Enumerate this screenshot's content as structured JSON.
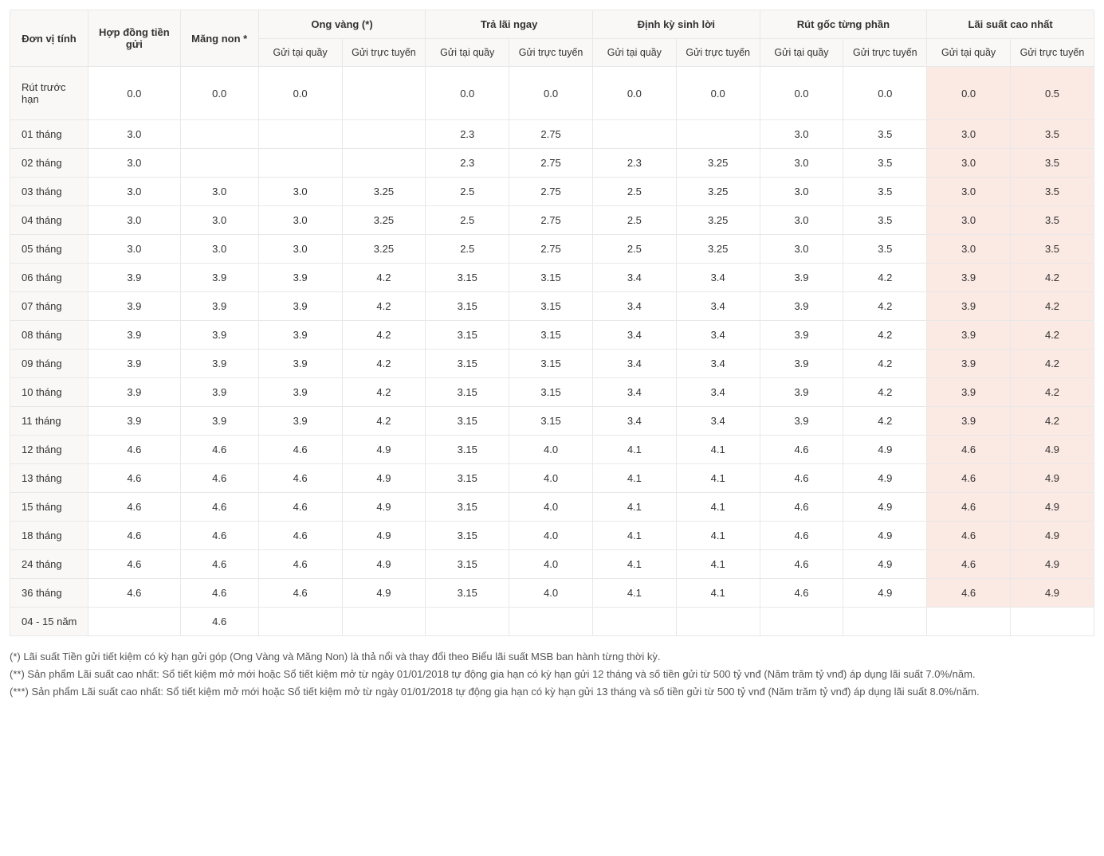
{
  "table": {
    "colors": {
      "header_bg": "#faf8f7",
      "rowlabel_bg": "#faf8f7",
      "highlight_bg": "#fbe9e3",
      "border": "#e8e8e8",
      "text": "#333333",
      "footnote_text": "#555555"
    },
    "header": {
      "col_unit": "Đơn vị tính",
      "col_contract": "Hợp đồng tiền gửi",
      "col_mangnon": "Măng non *",
      "group_ongvang": "Ong vàng (*)",
      "group_tralai": "Trả lãi ngay",
      "group_dinhky": "Định kỳ sinh lời",
      "group_rutgoc": "Rút gốc từng phần",
      "group_laisuat": "Lãi suất cao nhất",
      "sub_quay": "Gửi tại quầy",
      "sub_tuyen": "Gửi trực tuyến"
    },
    "rows": [
      {
        "label": "Rút trước hạn",
        "contract": "0.0",
        "mangnon": "0.0",
        "ov_q": "0.0",
        "ov_t": "",
        "tl_q": "0.0",
        "tl_t": "0.0",
        "dk_q": "0.0",
        "dk_t": "0.0",
        "rg_q": "0.0",
        "rg_t": "0.0",
        "ls_q": "0.0",
        "ls_t": "0.5",
        "first": true
      },
      {
        "label": "01 tháng",
        "contract": "3.0",
        "mangnon": "",
        "ov_q": "",
        "ov_t": "",
        "tl_q": "2.3",
        "tl_t": "2.75",
        "dk_q": "",
        "dk_t": "",
        "rg_q": "3.0",
        "rg_t": "3.5",
        "ls_q": "3.0",
        "ls_t": "3.5"
      },
      {
        "label": "02 tháng",
        "contract": "3.0",
        "mangnon": "",
        "ov_q": "",
        "ov_t": "",
        "tl_q": "2.3",
        "tl_t": "2.75",
        "dk_q": "2.3",
        "dk_t": "3.25",
        "rg_q": "3.0",
        "rg_t": "3.5",
        "ls_q": "3.0",
        "ls_t": "3.5"
      },
      {
        "label": "03 tháng",
        "contract": "3.0",
        "mangnon": "3.0",
        "ov_q": "3.0",
        "ov_t": "3.25",
        "tl_q": "2.5",
        "tl_t": "2.75",
        "dk_q": "2.5",
        "dk_t": "3.25",
        "rg_q": "3.0",
        "rg_t": "3.5",
        "ls_q": "3.0",
        "ls_t": "3.5"
      },
      {
        "label": "04 tháng",
        "contract": "3.0",
        "mangnon": "3.0",
        "ov_q": "3.0",
        "ov_t": "3.25",
        "tl_q": "2.5",
        "tl_t": "2.75",
        "dk_q": "2.5",
        "dk_t": "3.25",
        "rg_q": "3.0",
        "rg_t": "3.5",
        "ls_q": "3.0",
        "ls_t": "3.5"
      },
      {
        "label": "05 tháng",
        "contract": "3.0",
        "mangnon": "3.0",
        "ov_q": "3.0",
        "ov_t": "3.25",
        "tl_q": "2.5",
        "tl_t": "2.75",
        "dk_q": "2.5",
        "dk_t": "3.25",
        "rg_q": "3.0",
        "rg_t": "3.5",
        "ls_q": "3.0",
        "ls_t": "3.5"
      },
      {
        "label": "06 tháng",
        "contract": "3.9",
        "mangnon": "3.9",
        "ov_q": "3.9",
        "ov_t": "4.2",
        "tl_q": "3.15",
        "tl_t": "3.15",
        "dk_q": "3.4",
        "dk_t": "3.4",
        "rg_q": "3.9",
        "rg_t": "4.2",
        "ls_q": "3.9",
        "ls_t": "4.2"
      },
      {
        "label": "07 tháng",
        "contract": "3.9",
        "mangnon": "3.9",
        "ov_q": "3.9",
        "ov_t": "4.2",
        "tl_q": "3.15",
        "tl_t": "3.15",
        "dk_q": "3.4",
        "dk_t": "3.4",
        "rg_q": "3.9",
        "rg_t": "4.2",
        "ls_q": "3.9",
        "ls_t": "4.2"
      },
      {
        "label": "08 tháng",
        "contract": "3.9",
        "mangnon": "3.9",
        "ov_q": "3.9",
        "ov_t": "4.2",
        "tl_q": "3.15",
        "tl_t": "3.15",
        "dk_q": "3.4",
        "dk_t": "3.4",
        "rg_q": "3.9",
        "rg_t": "4.2",
        "ls_q": "3.9",
        "ls_t": "4.2"
      },
      {
        "label": "09 tháng",
        "contract": "3.9",
        "mangnon": "3.9",
        "ov_q": "3.9",
        "ov_t": "4.2",
        "tl_q": "3.15",
        "tl_t": "3.15",
        "dk_q": "3.4",
        "dk_t": "3.4",
        "rg_q": "3.9",
        "rg_t": "4.2",
        "ls_q": "3.9",
        "ls_t": "4.2"
      },
      {
        "label": "10 tháng",
        "contract": "3.9",
        "mangnon": "3.9",
        "ov_q": "3.9",
        "ov_t": "4.2",
        "tl_q": "3.15",
        "tl_t": "3.15",
        "dk_q": "3.4",
        "dk_t": "3.4",
        "rg_q": "3.9",
        "rg_t": "4.2",
        "ls_q": "3.9",
        "ls_t": "4.2"
      },
      {
        "label": "11 tháng",
        "contract": "3.9",
        "mangnon": "3.9",
        "ov_q": "3.9",
        "ov_t": "4.2",
        "tl_q": "3.15",
        "tl_t": "3.15",
        "dk_q": "3.4",
        "dk_t": "3.4",
        "rg_q": "3.9",
        "rg_t": "4.2",
        "ls_q": "3.9",
        "ls_t": "4.2"
      },
      {
        "label": "12 tháng",
        "contract": "4.6",
        "mangnon": "4.6",
        "ov_q": "4.6",
        "ov_t": "4.9",
        "tl_q": "3.15",
        "tl_t": "4.0",
        "dk_q": "4.1",
        "dk_t": "4.1",
        "rg_q": "4.6",
        "rg_t": "4.9",
        "ls_q": "4.6",
        "ls_t": "4.9"
      },
      {
        "label": "13 tháng",
        "contract": "4.6",
        "mangnon": "4.6",
        "ov_q": "4.6",
        "ov_t": "4.9",
        "tl_q": "3.15",
        "tl_t": "4.0",
        "dk_q": "4.1",
        "dk_t": "4.1",
        "rg_q": "4.6",
        "rg_t": "4.9",
        "ls_q": "4.6",
        "ls_t": "4.9"
      },
      {
        "label": "15 tháng",
        "contract": "4.6",
        "mangnon": "4.6",
        "ov_q": "4.6",
        "ov_t": "4.9",
        "tl_q": "3.15",
        "tl_t": "4.0",
        "dk_q": "4.1",
        "dk_t": "4.1",
        "rg_q": "4.6",
        "rg_t": "4.9",
        "ls_q": "4.6",
        "ls_t": "4.9"
      },
      {
        "label": "18 tháng",
        "contract": "4.6",
        "mangnon": "4.6",
        "ov_q": "4.6",
        "ov_t": "4.9",
        "tl_q": "3.15",
        "tl_t": "4.0",
        "dk_q": "4.1",
        "dk_t": "4.1",
        "rg_q": "4.6",
        "rg_t": "4.9",
        "ls_q": "4.6",
        "ls_t": "4.9"
      },
      {
        "label": "24 tháng",
        "contract": "4.6",
        "mangnon": "4.6",
        "ov_q": "4.6",
        "ov_t": "4.9",
        "tl_q": "3.15",
        "tl_t": "4.0",
        "dk_q": "4.1",
        "dk_t": "4.1",
        "rg_q": "4.6",
        "rg_t": "4.9",
        "ls_q": "4.6",
        "ls_t": "4.9"
      },
      {
        "label": "36 tháng",
        "contract": "4.6",
        "mangnon": "4.6",
        "ov_q": "4.6",
        "ov_t": "4.9",
        "tl_q": "3.15",
        "tl_t": "4.0",
        "dk_q": "4.1",
        "dk_t": "4.1",
        "rg_q": "4.6",
        "rg_t": "4.9",
        "ls_q": "4.6",
        "ls_t": "4.9"
      },
      {
        "label": "04 - 15 năm",
        "contract": "",
        "mangnon": "4.6",
        "ov_q": "",
        "ov_t": "",
        "tl_q": "",
        "tl_t": "",
        "dk_q": "",
        "dk_t": "",
        "rg_q": "",
        "rg_t": "",
        "ls_q": "",
        "ls_t": "",
        "no_highlight": true
      }
    ]
  },
  "footnotes": {
    "f1": "(*) Lãi suất Tiền gửi tiết kiệm có kỳ hạn gửi góp (Ong Vàng và Măng Non) là thả nổi và thay đổi theo Biểu lãi suất MSB ban hành từng thời kỳ.",
    "f2": "(**) Sản phẩm Lãi suất cao nhất: Sổ tiết kiệm mở mới hoặc Sổ tiết kiệm mở từ ngày 01/01/2018 tự động gia hạn có kỳ hạn gửi 12 tháng và số tiền gửi từ 500 tỷ vnđ (Năm trăm tỷ vnđ) áp dụng lãi suất 7.0%/năm.",
    "f3": "(***) Sản phẩm Lãi suất cao nhất: Sổ tiết kiệm mở mới hoặc Sổ tiết kiệm mở từ ngày 01/01/2018 tự động gia hạn có kỳ hạn gửi 13 tháng và số tiền gửi từ 500 tỷ vnđ (Năm trăm tỷ vnđ) áp dụng lãi suất 8.0%/năm."
  }
}
